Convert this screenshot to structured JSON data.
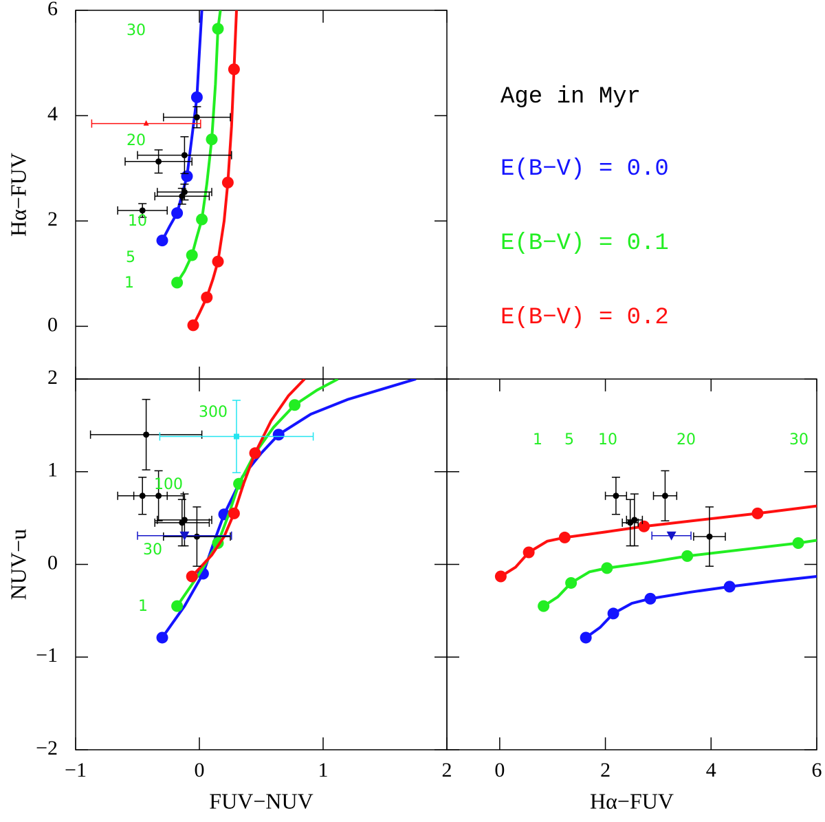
{
  "legend": {
    "title": "Age in Myr",
    "entries": [
      {
        "label": "E(B−V) = 0.0",
        "color": "#1414ff"
      },
      {
        "label": "E(B−V) = 0.1",
        "color": "#22ee22"
      },
      {
        "label": "E(B−V) = 0.2",
        "color": "#ff1010"
      }
    ]
  },
  "chart_data": [
    {
      "type": "scatter",
      "ylabel": "Hα−FUV",
      "xlim": [
        -1,
        2
      ],
      "ylim": [
        -1,
        6
      ],
      "xticks": [
        -1,
        0,
        1,
        2
      ],
      "xtick_labels": false,
      "yticks": [
        0,
        2,
        4,
        6
      ],
      "ytick_labels": true,
      "annotation_color": "#22ee22",
      "annotations": [
        {
          "text": "30"
        },
        {
          "text": "20"
        },
        {
          "text": "10"
        },
        {
          "text": "5"
        },
        {
          "text": "1"
        }
      ],
      "series": [
        {
          "color": "#1414ff",
          "x": [
            -0.3,
            -0.18,
            -0.1,
            -0.02
          ],
          "values": [
            1.63,
            2.15,
            2.85,
            4.35
          ],
          "curve_x": [
            -0.3,
            -0.24,
            -0.18,
            -0.14,
            -0.1,
            -0.06,
            -0.02,
            0.0,
            0.02
          ],
          "curve_y": [
            1.63,
            1.9,
            2.15,
            2.5,
            2.85,
            3.6,
            4.35,
            5.2,
            6
          ]
        },
        {
          "color": "#22ee22",
          "x": [
            -0.18,
            -0.06,
            0.02,
            0.1,
            0.15
          ],
          "values": [
            0.83,
            1.35,
            2.03,
            3.55,
            5.65
          ],
          "curve_x": [
            -0.18,
            -0.12,
            -0.06,
            -0.02,
            0.02,
            0.06,
            0.1,
            0.13,
            0.15,
            0.17
          ],
          "curve_y": [
            0.83,
            1.05,
            1.35,
            1.7,
            2.03,
            2.7,
            3.55,
            4.6,
            5.65,
            6
          ]
        },
        {
          "color": "#ff1010",
          "x": [
            -0.05,
            0.06,
            0.15,
            0.23,
            0.28
          ],
          "values": [
            0.02,
            0.55,
            1.23,
            2.73,
            4.88
          ],
          "curve_x": [
            -0.05,
            0.0,
            0.06,
            0.11,
            0.15,
            0.2,
            0.23,
            0.26,
            0.28,
            0.3
          ],
          "curve_y": [
            0.02,
            0.25,
            0.55,
            0.9,
            1.23,
            2.0,
            2.73,
            3.8,
            4.88,
            6
          ]
        }
      ],
      "points": [
        {
          "marker": "circle",
          "color": "#000000",
          "x": [
            -0.02,
            -0.12,
            -0.33,
            -0.12,
            -0.14,
            -0.46
          ],
          "values": [
            3.97,
            3.25,
            3.13,
            2.55,
            2.47,
            2.2
          ],
          "xerr": [
            0.27,
            0.38,
            0.27,
            0.22,
            0.22,
            0.2
          ],
          "yerr": [
            0.2,
            0.35,
            0.22,
            0.15,
            0.15,
            0.13
          ]
        },
        {
          "marker": "triangle-up",
          "color": "#ff1010",
          "x": [
            -0.43
          ],
          "values": [
            3.85
          ],
          "xerr": [
            0.44
          ],
          "yerr": [
            0
          ]
        }
      ]
    },
    {
      "type": "scatter",
      "xlabel": "FUV−NUV",
      "ylabel": "NUV−u",
      "xlim": [
        -1,
        2
      ],
      "ylim": [
        -2,
        2
      ],
      "xticks": [
        {
          "value": -1,
          "label": "−1"
        },
        0,
        1,
        2
      ],
      "xtick_labels": true,
      "yticks": [
        {
          "value": -2,
          "label": "−2"
        },
        {
          "value": -1,
          "label": "−1"
        },
        0,
        1,
        2
      ],
      "ytick_labels": true,
      "annotation_color": "#22ee22",
      "annotations": [
        {
          "text": "300"
        },
        {
          "text": "100"
        },
        {
          "text": "30"
        },
        {
          "text": "1"
        }
      ],
      "series": [
        {
          "color": "#1414ff",
          "x": [
            -0.3,
            0.03,
            0.2,
            0.64
          ],
          "values": [
            -0.79,
            -0.1,
            0.54,
            1.4
          ],
          "curve_x": [
            -0.3,
            -0.12,
            0.03,
            0.12,
            0.2,
            0.35,
            0.5,
            0.64,
            0.9,
            1.2,
            1.5,
            1.75
          ],
          "curve_y": [
            -0.79,
            -0.45,
            -0.1,
            0.25,
            0.54,
            0.95,
            1.2,
            1.4,
            1.62,
            1.78,
            1.9,
            2
          ]
        },
        {
          "color": "#22ee22",
          "x": [
            -0.18,
            0.15,
            0.32,
            0.77
          ],
          "values": [
            -0.45,
            0.23,
            0.87,
            1.72
          ],
          "curve_x": [
            -0.18,
            0.0,
            0.15,
            0.24,
            0.32,
            0.45,
            0.6,
            0.77,
            0.95,
            1.12
          ],
          "curve_y": [
            -0.45,
            -0.1,
            0.23,
            0.55,
            0.87,
            1.2,
            1.48,
            1.72,
            1.88,
            2
          ]
        },
        {
          "color": "#ff1010",
          "x": [
            -0.06,
            0.28,
            0.45
          ],
          "values": [
            -0.13,
            0.55,
            1.2
          ],
          "curve_x": [
            -0.06,
            0.1,
            0.2,
            0.28,
            0.36,
            0.45,
            0.58,
            0.72,
            0.85
          ],
          "curve_y": [
            -0.13,
            0.1,
            0.3,
            0.55,
            0.88,
            1.2,
            1.55,
            1.82,
            2
          ]
        }
      ],
      "points": [
        {
          "marker": "circle",
          "color": "#000000",
          "x": [
            -0.43,
            -0.46,
            -0.33,
            -0.12,
            -0.14,
            -0.02
          ],
          "values": [
            1.4,
            0.74,
            0.74,
            0.48,
            0.45,
            0.3
          ],
          "xerr": [
            0.45,
            0.2,
            0.2,
            0.22,
            0.22,
            0.27
          ],
          "yerr": [
            0.38,
            0.2,
            0.27,
            0.28,
            0.25,
            0.32
          ]
        },
        {
          "marker": "square",
          "color": "#22e5f0",
          "x": [
            0.3
          ],
          "values": [
            1.38
          ],
          "xerr": [
            0.62
          ],
          "yerr": [
            0.39
          ]
        },
        {
          "marker": "triangle-down",
          "color": "#1414c8",
          "x": [
            -0.12
          ],
          "values": [
            0.31
          ],
          "xerr": [
            0.38
          ],
          "yerr": [
            0
          ]
        }
      ]
    },
    {
      "type": "scatter",
      "xlabel": "Hα−FUV",
      "xlim": [
        -1,
        6
      ],
      "ylim": [
        -2,
        2
      ],
      "xticks": [
        0,
        2,
        4,
        6
      ],
      "xtick_labels": true,
      "yticks": [
        -2,
        -1,
        0,
        1,
        2
      ],
      "ytick_labels": false,
      "annotation_color": "#22ee22",
      "annotations": [
        {
          "text": "1"
        },
        {
          "text": "5"
        },
        {
          "text": "10"
        },
        {
          "text": "20"
        },
        {
          "text": "30"
        }
      ],
      "series": [
        {
          "color": "#ff1010",
          "x": [
            0.02,
            0.55,
            1.23,
            2.73,
            4.88
          ],
          "values": [
            -0.13,
            0.13,
            0.29,
            0.41,
            0.55
          ],
          "curve_x": [
            0.02,
            0.3,
            0.55,
            0.9,
            1.23,
            2.0,
            2.73,
            3.8,
            4.88,
            6
          ],
          "curve_y": [
            -0.13,
            -0.03,
            0.13,
            0.25,
            0.29,
            0.35,
            0.41,
            0.48,
            0.55,
            0.63
          ]
        },
        {
          "color": "#22ee22",
          "x": [
            0.83,
            1.35,
            2.03,
            3.55,
            5.65
          ],
          "values": [
            -0.45,
            -0.2,
            -0.04,
            0.09,
            0.23
          ],
          "curve_x": [
            0.83,
            1.1,
            1.35,
            1.7,
            2.03,
            2.8,
            3.55,
            4.6,
            5.65,
            6
          ],
          "curve_y": [
            -0.45,
            -0.35,
            -0.2,
            -0.08,
            -0.04,
            0.02,
            0.09,
            0.16,
            0.23,
            0.26
          ]
        },
        {
          "color": "#1414ff",
          "x": [
            1.63,
            2.15,
            2.85,
            4.35
          ],
          "values": [
            -0.79,
            -0.53,
            -0.37,
            -0.24
          ],
          "curve_x": [
            1.63,
            1.9,
            2.15,
            2.5,
            2.85,
            3.6,
            4.35,
            5.2,
            6
          ],
          "curve_y": [
            -0.79,
            -0.68,
            -0.53,
            -0.42,
            -0.37,
            -0.3,
            -0.24,
            -0.18,
            -0.13
          ]
        }
      ],
      "points": [
        {
          "marker": "circle",
          "color": "#000000",
          "x": [
            2.2,
            3.13,
            2.55,
            2.47,
            3.97
          ],
          "values": [
            0.74,
            0.74,
            0.48,
            0.45,
            0.3
          ],
          "xerr": [
            0.2,
            0.22,
            0.15,
            0.15,
            0.3
          ],
          "yerr": [
            0.2,
            0.27,
            0.28,
            0.25,
            0.32
          ]
        },
        {
          "marker": "triangle-down",
          "color": "#1414c8",
          "x": [
            3.25
          ],
          "values": [
            0.31
          ],
          "xerr": [
            0.37
          ],
          "yerr": [
            0
          ]
        }
      ]
    }
  ]
}
